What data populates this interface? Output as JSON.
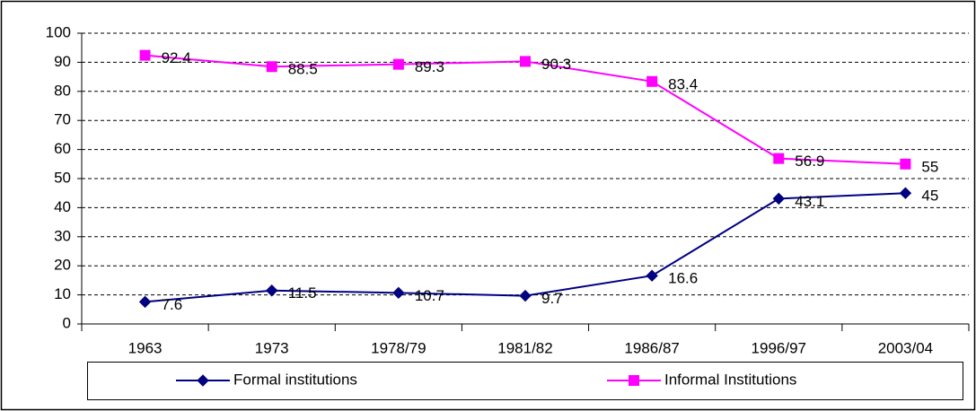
{
  "chart_data": {
    "type": "line",
    "categories": [
      "1963",
      "1973",
      "1978/79",
      "1981/82",
      "1986/87",
      "1996/97",
      "2003/04"
    ],
    "series": [
      {
        "name": "Formal institutions",
        "color": "#000080",
        "marker": "diamond",
        "values": [
          7.6,
          11.5,
          10.7,
          9.7,
          16.6,
          43.1,
          45
        ]
      },
      {
        "name": "Informal Institutions",
        "color": "#ff00ff",
        "marker": "square",
        "values": [
          92.4,
          88.5,
          89.3,
          90.3,
          83.4,
          56.9,
          55
        ]
      }
    ],
    "ylim": [
      0,
      100
    ],
    "yticks": [
      0,
      10,
      20,
      30,
      40,
      50,
      60,
      70,
      80,
      90,
      100
    ],
    "grid": true,
    "legend": "bottom",
    "data_labels": true
  }
}
